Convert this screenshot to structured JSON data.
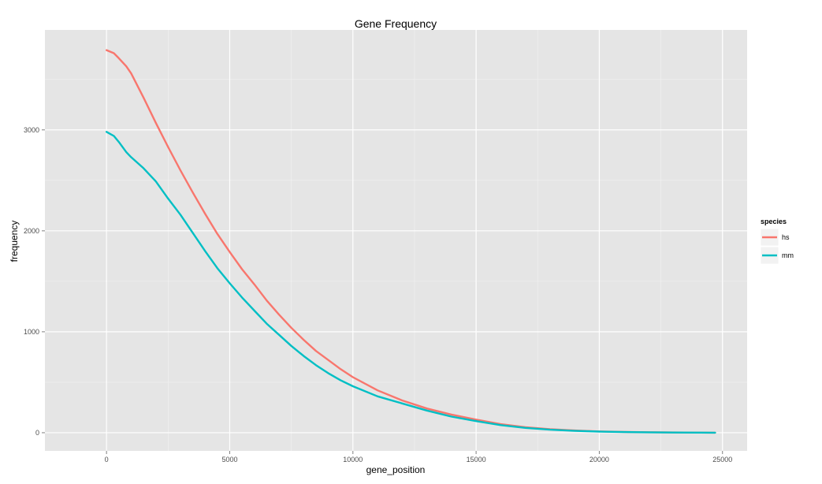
{
  "chart_data": {
    "type": "line",
    "title": "Gene Frequency",
    "xlabel": "gene_position",
    "ylabel": "frequency",
    "xlim": [
      -2500,
      26000
    ],
    "ylim": [
      -180,
      3990
    ],
    "x_ticks": [
      0,
      5000,
      10000,
      15000,
      20000,
      25000
    ],
    "x_tick_labels": [
      "0",
      "5000",
      "10000",
      "15000",
      "20000",
      "25000"
    ],
    "y_ticks": [
      0,
      1000,
      2000,
      3000
    ],
    "y_tick_labels": [
      "0",
      "1000",
      "2000",
      "3000"
    ],
    "grid": true,
    "legend": {
      "title": "species",
      "placement": "right"
    },
    "series": [
      {
        "name": "hs",
        "color": "#f8766d",
        "x": [
          0,
          300,
          500,
          800,
          1000,
          1500,
          2000,
          2500,
          3000,
          3500,
          4000,
          4500,
          5000,
          5500,
          6000,
          6500,
          7000,
          7500,
          8000,
          8500,
          9000,
          9500,
          10000,
          11000,
          12000,
          13000,
          14000,
          15000,
          16000,
          17000,
          18000,
          19000,
          20000,
          21000,
          22000,
          23000,
          24000,
          24700
        ],
        "values": [
          3790,
          3760,
          3710,
          3630,
          3560,
          3320,
          3070,
          2830,
          2600,
          2380,
          2170,
          1970,
          1790,
          1620,
          1470,
          1310,
          1170,
          1040,
          920,
          810,
          720,
          630,
          550,
          420,
          320,
          240,
          180,
          130,
          85,
          55,
          35,
          22,
          13,
          8,
          5,
          3,
          1,
          0
        ]
      },
      {
        "name": "mm",
        "color": "#00bfc4",
        "x": [
          0,
          300,
          500,
          800,
          1000,
          1500,
          2000,
          2500,
          3000,
          3500,
          4000,
          4500,
          5000,
          5500,
          6000,
          6500,
          7000,
          7500,
          8000,
          8500,
          9000,
          9500,
          10000,
          11000,
          12000,
          13000,
          14000,
          15000,
          16000,
          17000,
          18000,
          19000,
          20000,
          21000,
          22000,
          23000,
          24000,
          24700
        ],
        "values": [
          2980,
          2940,
          2880,
          2780,
          2730,
          2620,
          2490,
          2320,
          2160,
          1980,
          1800,
          1630,
          1480,
          1340,
          1210,
          1080,
          970,
          860,
          760,
          670,
          590,
          520,
          460,
          360,
          290,
          220,
          160,
          115,
          75,
          48,
          30,
          18,
          11,
          7,
          4,
          2,
          1,
          0
        ]
      }
    ]
  }
}
